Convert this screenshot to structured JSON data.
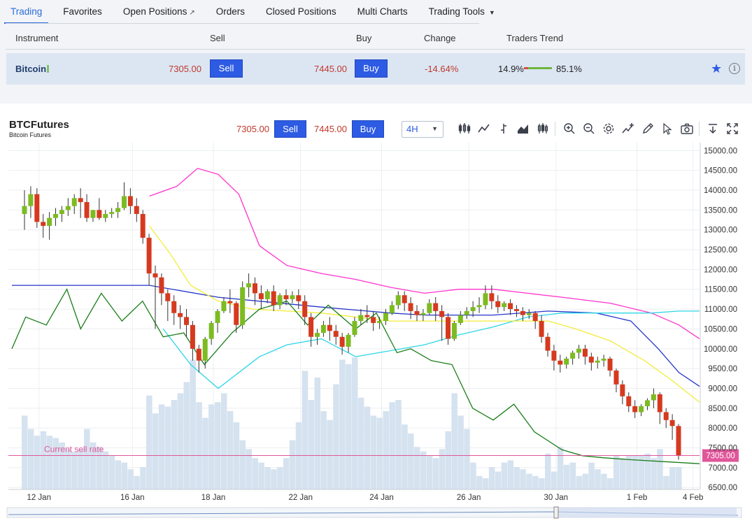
{
  "tabs": [
    {
      "label": "Trading",
      "active": true
    },
    {
      "label": "Favorites"
    },
    {
      "label": "Open Positions",
      "icon": "external-link-icon"
    },
    {
      "label": "Orders"
    },
    {
      "label": "Closed Positions"
    },
    {
      "label": "Multi Charts"
    },
    {
      "label": "Trading Tools",
      "icon": "caret-down-icon"
    }
  ],
  "table": {
    "headers": {
      "instrument": "Instrument",
      "sell": "Sell",
      "buy": "Buy",
      "change": "Change",
      "trend": "Traders Trend"
    },
    "row": {
      "instrument": "Bitcoin",
      "sell_price": "7305.00",
      "sell_label": "Sell",
      "buy_price": "7445.00",
      "buy_label": "Buy",
      "change": "-14.64%",
      "trend_sell": "14.9%",
      "trend_buy": "85.1%",
      "trend_sell_fraction": 0.149,
      "favorite_icon": "star-icon",
      "info_icon": "info-icon"
    }
  },
  "chart_header": {
    "symbol": "BTCFutures",
    "description": "Bitcoin Futures",
    "sell_price": "7305.00",
    "sell_label": "Sell",
    "buy_price": "7445.00",
    "buy_label": "Buy",
    "timeframe": "4H",
    "tools": [
      "candles-icon",
      "line-chart-icon",
      "bar-chart-icon",
      "area-chart-icon",
      "hollow-candles-icon",
      "zoom-in-icon",
      "zoom-out-icon",
      "settings-icon",
      "indicators-icon",
      "draw-icon",
      "cursor-icon",
      "camera-icon",
      "download-icon",
      "fullscreen-icon"
    ]
  },
  "colors": {
    "accent": "#2d5be3",
    "up": "#7cbb21",
    "down": "#d53a1f",
    "current_rate": "#e0569a",
    "volume": "#d5e2ef"
  },
  "chart_data": {
    "type": "candlestick",
    "y_ticks": [
      "15000.00",
      "14500.00",
      "14000.00",
      "13500.00",
      "13000.00",
      "12500.00",
      "12000.00",
      "11500.00",
      "11000.00",
      "10500.00",
      "10000.00",
      "9500.00",
      "9000.00",
      "8500.00",
      "8000.00",
      "7500.00",
      "7000.00",
      "6500.00"
    ],
    "ylim": [
      6450,
      15200
    ],
    "x_ticks": [
      "12 Jan",
      "16 Jan",
      "18 Jan",
      "22 Jan",
      "24 Jan",
      "26 Jan",
      "30 Jan",
      "1 Feb",
      "4 Feb"
    ],
    "current_sell_label": "Current sell rate",
    "current_sell_rate": 7305.0,
    "current_sell_tag": "7305.00",
    "candles": [
      [
        13400,
        14000,
        13600,
        13000
      ],
      [
        13600,
        14100,
        13900,
        13300
      ],
      [
        13900,
        14050,
        13200,
        13050
      ],
      [
        13200,
        13400,
        13100,
        12800
      ],
      [
        13100,
        13450,
        13300,
        12750
      ],
      [
        13300,
        13550,
        13400,
        13100
      ],
      [
        13400,
        13600,
        13500,
        13200
      ],
      [
        13500,
        13800,
        13600,
        13350
      ],
      [
        13600,
        13900,
        13800,
        13400
      ],
      [
        13800,
        14050,
        13700,
        13300
      ],
      [
        13700,
        13900,
        13300,
        13200
      ],
      [
        13300,
        13500,
        13500,
        13200
      ],
      [
        13500,
        13800,
        13300,
        13250
      ],
      [
        13300,
        13500,
        13400,
        13200
      ],
      [
        13400,
        13550,
        13450,
        13300
      ],
      [
        13450,
        13700,
        13550,
        13300
      ],
      [
        13550,
        14200,
        13850,
        13500
      ],
      [
        13850,
        14050,
        13600,
        13400
      ],
      [
        13600,
        13800,
        13400,
        13200
      ],
      [
        13400,
        13500,
        12800,
        12650
      ],
      [
        12800,
        12900,
        11900,
        11600
      ],
      [
        11900,
        12100,
        11800,
        10500
      ],
      [
        11800,
        11900,
        11400,
        11100
      ],
      [
        11400,
        11500,
        11200,
        10700
      ],
      [
        11200,
        11350,
        10900,
        10600
      ],
      [
        10900,
        11100,
        10800,
        10500
      ],
      [
        10800,
        11000,
        10600,
        10300
      ],
      [
        10600,
        10700,
        10000,
        9700
      ],
      [
        10000,
        10100,
        9700,
        9400
      ],
      [
        9700,
        10300,
        10250,
        9500
      ],
      [
        10250,
        10700,
        10650,
        10100
      ],
      [
        10650,
        11000,
        10950,
        10400
      ],
      [
        10950,
        11300,
        11200,
        10900
      ],
      [
        11200,
        11500,
        11150,
        10900
      ],
      [
        11150,
        11200,
        10600,
        10400
      ],
      [
        10600,
        11700,
        11550,
        10500
      ],
      [
        11550,
        11900,
        11650,
        11300
      ],
      [
        11650,
        11800,
        11400,
        11100
      ],
      [
        11400,
        11600,
        11250,
        11000
      ],
      [
        11250,
        11500,
        11450,
        11150
      ],
      [
        11450,
        11600,
        11100,
        10950
      ],
      [
        11100,
        11400,
        11350,
        11000
      ],
      [
        11350,
        11500,
        11250,
        11100
      ],
      [
        11250,
        11450,
        11350,
        11150
      ],
      [
        11350,
        11500,
        11200,
        11000
      ],
      [
        11200,
        11350,
        10800,
        10600
      ],
      [
        10800,
        10900,
        10300,
        10050
      ],
      [
        10300,
        10500,
        10400,
        10100
      ],
      [
        10400,
        10700,
        10600,
        10300
      ],
      [
        10600,
        10800,
        10450,
        10200
      ],
      [
        10450,
        10600,
        10300,
        10100
      ],
      [
        10300,
        10400,
        10050,
        9850
      ],
      [
        10050,
        10400,
        10350,
        9900
      ],
      [
        10350,
        10800,
        10700,
        10300
      ],
      [
        10700,
        11000,
        10850,
        10600
      ],
      [
        10850,
        11100,
        10800,
        10650
      ],
      [
        10800,
        10950,
        10650,
        10450
      ],
      [
        10650,
        10800,
        10700,
        10500
      ],
      [
        10700,
        11000,
        10900,
        10600
      ],
      [
        10900,
        11200,
        11100,
        10850
      ],
      [
        11100,
        11450,
        11350,
        11000
      ],
      [
        11350,
        11450,
        11150,
        10950
      ],
      [
        11150,
        11300,
        10950,
        10750
      ],
      [
        10950,
        11100,
        10850,
        10700
      ],
      [
        10850,
        11000,
        10900,
        10700
      ],
      [
        10900,
        11250,
        11150,
        10850
      ],
      [
        11150,
        11300,
        10950,
        10700
      ],
      [
        10950,
        11100,
        10800,
        10200
      ],
      [
        10800,
        10900,
        10250,
        10100
      ],
      [
        10250,
        10700,
        10650,
        10200
      ],
      [
        10650,
        10950,
        10850,
        10600
      ],
      [
        10850,
        11050,
        10950,
        10750
      ],
      [
        10950,
        11200,
        11050,
        10800
      ],
      [
        11050,
        11300,
        11100,
        10900
      ],
      [
        11100,
        11600,
        11400,
        11000
      ],
      [
        11400,
        11600,
        11200,
        11000
      ],
      [
        11200,
        11350,
        11050,
        10900
      ],
      [
        11050,
        11200,
        11150,
        10950
      ],
      [
        11150,
        11250,
        11000,
        10850
      ],
      [
        11000,
        11100,
        10950,
        10800
      ],
      [
        10950,
        11050,
        10850,
        10700
      ],
      [
        10850,
        11000,
        10900,
        10750
      ],
      [
        10900,
        10950,
        10700,
        10500
      ],
      [
        10700,
        10850,
        10300,
        10150
      ],
      [
        10300,
        10400,
        9950,
        9800
      ],
      [
        9950,
        10100,
        9700,
        9450
      ],
      [
        9700,
        9850,
        9600,
        9400
      ],
      [
        9600,
        9800,
        9750,
        9500
      ],
      [
        9750,
        9950,
        9900,
        9600
      ],
      [
        9900,
        10100,
        10000,
        9750
      ],
      [
        10000,
        10100,
        9800,
        9600
      ],
      [
        9800,
        9900,
        9650,
        9450
      ],
      [
        9650,
        9800,
        9700,
        9500
      ],
      [
        9700,
        9850,
        9750,
        9550
      ],
      [
        9750,
        9800,
        9450,
        9300
      ],
      [
        9450,
        9500,
        9100,
        8900
      ],
      [
        9100,
        9200,
        8800,
        8600
      ],
      [
        8800,
        8900,
        8550,
        8400
      ],
      [
        8550,
        8700,
        8400,
        8250
      ],
      [
        8400,
        8600,
        8550,
        8300
      ],
      [
        8550,
        8750,
        8700,
        8450
      ],
      [
        8700,
        9000,
        8850,
        8500
      ],
      [
        8850,
        8900,
        8400,
        8100
      ],
      [
        8400,
        8500,
        8200,
        8000
      ],
      [
        8200,
        8350,
        8050,
        7700
      ],
      [
        8050,
        8100,
        7305,
        7200
      ]
    ],
    "volumes": [
      0.33,
      0.27,
      0.24,
      0.26,
      0.24,
      0.23,
      0.21,
      0.18,
      0.17,
      0.18,
      0.27,
      0.21,
      0.19,
      0.17,
      0.15,
      0.13,
      0.12,
      0.09,
      0.06,
      0.1,
      0.42,
      0.34,
      0.38,
      0.37,
      0.4,
      0.43,
      0.48,
      0.58,
      0.39,
      0.32,
      0.38,
      0.39,
      0.43,
      0.35,
      0.3,
      0.22,
      0.18,
      0.14,
      0.12,
      0.1,
      0.09,
      0.1,
      0.14,
      0.22,
      0.3,
      0.53,
      0.4,
      0.5,
      0.35,
      0.31,
      0.47,
      0.58,
      0.56,
      0.59,
      0.41,
      0.37,
      0.33,
      0.32,
      0.35,
      0.39,
      0.4,
      0.29,
      0.25,
      0.19,
      0.17,
      0.15,
      0.14,
      0.18,
      0.26,
      0.43,
      0.33,
      0.27,
      0.12,
      0.06,
      0.05,
      0.1,
      0.08,
      0.12,
      0.13,
      0.1,
      0.09,
      0.07,
      0.06,
      0.05,
      0.16,
      0.08,
      0.19,
      0.11,
      0.12,
      0.06,
      0.07,
      0.12,
      0.09,
      0.07,
      0.05,
      0.15,
      0.14,
      0.15,
      0.15,
      0.15,
      0.16,
      0.14,
      0.18,
      0.06,
      0.1,
      0.1
    ],
    "moving_averages": [
      {
        "color": "#2535c9",
        "points": [
          [
            0,
            11600
          ],
          [
            0.2,
            11600
          ],
          [
            0.3,
            11300
          ],
          [
            0.45,
            11050
          ],
          [
            0.55,
            10900
          ],
          [
            0.6,
            10850
          ],
          [
            0.7,
            10850
          ],
          [
            0.78,
            10950
          ],
          [
            0.85,
            10900
          ],
          [
            0.9,
            10700
          ],
          [
            0.94,
            10000
          ],
          [
            0.97,
            9400
          ],
          [
            1,
            9050
          ]
        ]
      },
      {
        "color": "#ff33cc",
        "points": [
          [
            0.2,
            13850
          ],
          [
            0.24,
            14100
          ],
          [
            0.27,
            14550
          ],
          [
            0.3,
            14400
          ],
          [
            0.33,
            13900
          ],
          [
            0.36,
            12600
          ],
          [
            0.4,
            12100
          ],
          [
            0.45,
            11900
          ],
          [
            0.5,
            11750
          ],
          [
            0.55,
            11550
          ],
          [
            0.6,
            11400
          ],
          [
            0.65,
            11500
          ],
          [
            0.7,
            11500
          ],
          [
            0.75,
            11400
          ],
          [
            0.8,
            11300
          ],
          [
            0.87,
            11150
          ],
          [
            0.93,
            10900
          ],
          [
            0.97,
            10600
          ],
          [
            1,
            10250
          ]
        ]
      },
      {
        "color": "#2ed6e6",
        "points": [
          [
            0.22,
            10500
          ],
          [
            0.26,
            9600
          ],
          [
            0.3,
            9000
          ],
          [
            0.33,
            9400
          ],
          [
            0.36,
            9800
          ],
          [
            0.4,
            10100
          ],
          [
            0.45,
            10250
          ],
          [
            0.5,
            9800
          ],
          [
            0.55,
            9950
          ],
          [
            0.6,
            10100
          ],
          [
            0.65,
            10350
          ],
          [
            0.7,
            10550
          ],
          [
            0.75,
            10800
          ],
          [
            0.8,
            10900
          ],
          [
            0.87,
            10900
          ],
          [
            0.93,
            10900
          ],
          [
            0.97,
            10950
          ],
          [
            1,
            10950
          ]
        ]
      },
      {
        "color": "#f3ec3b",
        "points": [
          [
            0.2,
            13100
          ],
          [
            0.23,
            12400
          ],
          [
            0.26,
            11600
          ],
          [
            0.3,
            11200
          ],
          [
            0.35,
            11000
          ],
          [
            0.45,
            10900
          ],
          [
            0.55,
            10700
          ],
          [
            0.62,
            10700
          ],
          [
            0.7,
            10700
          ],
          [
            0.78,
            10700
          ],
          [
            0.82,
            10500
          ],
          [
            0.87,
            10200
          ],
          [
            0.92,
            9700
          ],
          [
            0.96,
            9200
          ],
          [
            1,
            8650
          ]
        ]
      },
      {
        "color": "#1a7d1a",
        "points": [
          [
            0,
            10000
          ],
          [
            0.02,
            10800
          ],
          [
            0.05,
            10600
          ],
          [
            0.08,
            11500
          ],
          [
            0.1,
            10500
          ],
          [
            0.13,
            11400
          ],
          [
            0.16,
            10700
          ],
          [
            0.19,
            11200
          ],
          [
            0.22,
            10300
          ],
          [
            0.25,
            10400
          ],
          [
            0.28,
            9600
          ],
          [
            0.32,
            10400
          ],
          [
            0.36,
            11000
          ],
          [
            0.4,
            11200
          ],
          [
            0.43,
            10600
          ],
          [
            0.46,
            11100
          ],
          [
            0.5,
            10500
          ],
          [
            0.53,
            10900
          ],
          [
            0.56,
            9900
          ],
          [
            0.58,
            10000
          ],
          [
            0.61,
            9700
          ],
          [
            0.64,
            9600
          ],
          [
            0.67,
            8500
          ],
          [
            0.7,
            8200
          ],
          [
            0.73,
            8600
          ],
          [
            0.76,
            7900
          ],
          [
            0.8,
            7450
          ],
          [
            0.83,
            7300
          ],
          [
            0.86,
            7250
          ],
          [
            0.9,
            7200
          ],
          [
            0.95,
            7150
          ],
          [
            1,
            7100
          ]
        ]
      }
    ]
  }
}
